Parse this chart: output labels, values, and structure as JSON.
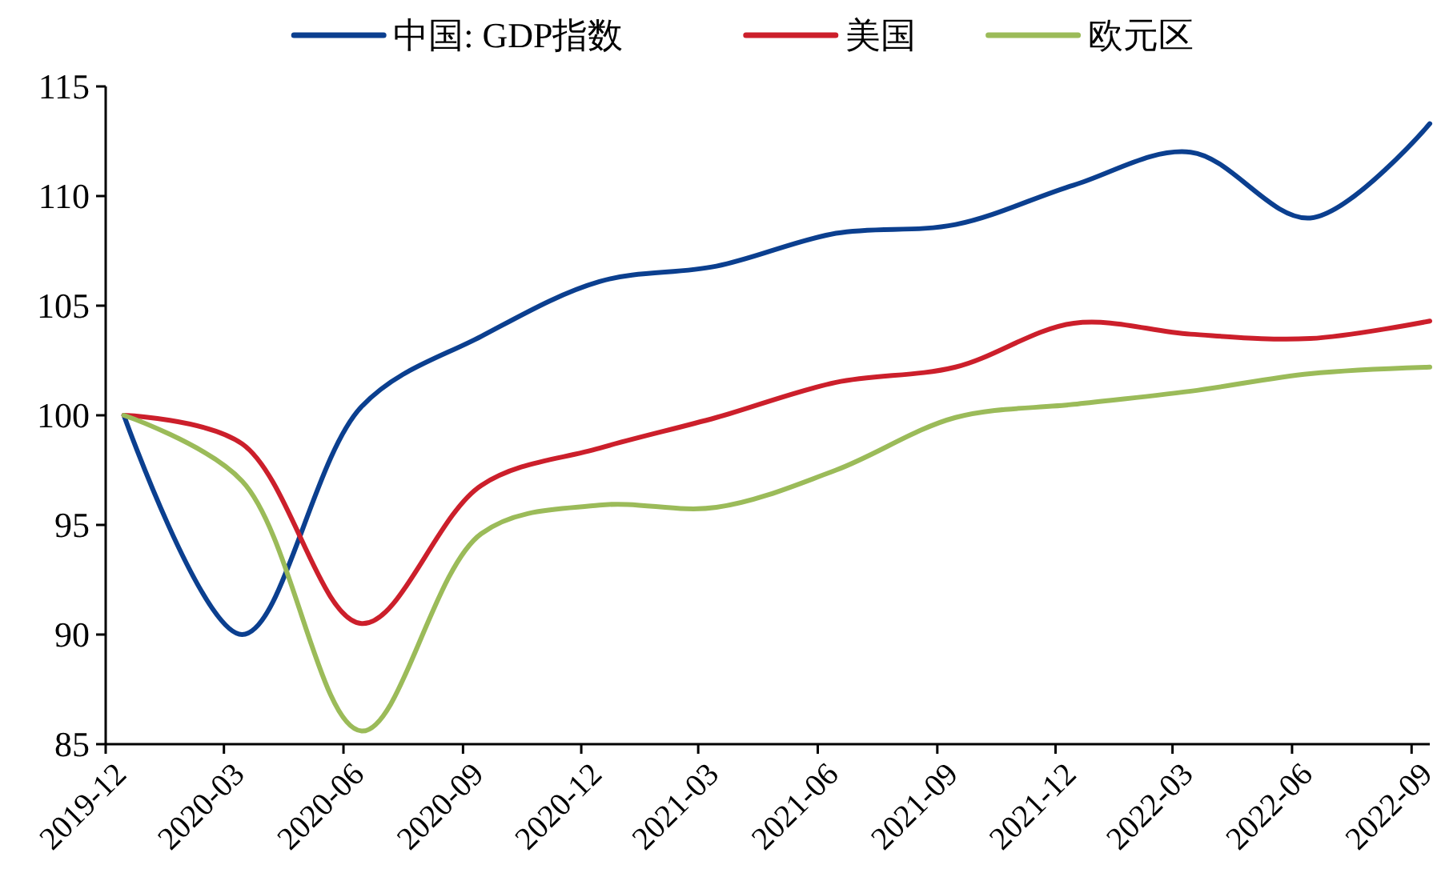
{
  "chart_data": {
    "type": "line",
    "x": [
      "2019-12-15",
      "2020-03-15",
      "2020-06-15",
      "2020-09-15",
      "2020-12-15",
      "2021-03-15",
      "2021-06-15",
      "2021-09-15",
      "2021-12-15",
      "2022-03-15",
      "2022-06-15",
      "2022-09-15"
    ],
    "series": [
      {
        "name": "中国: GDP指数",
        "color": "#0b3f8f",
        "values": [
          100,
          90.0,
          100.4,
          103.6,
          106.1,
          106.8,
          108.3,
          108.7,
          110.5,
          112.0,
          109.0,
          113.3
        ]
      },
      {
        "name": "美国",
        "color": "#cc1f2b",
        "values": [
          100,
          98.7,
          90.5,
          96.8,
          98.5,
          99.9,
          101.5,
          102.2,
          104.2,
          103.7,
          103.5,
          104.3
        ]
      },
      {
        "name": "欧元区",
        "color": "#9bbb59",
        "values": [
          100,
          97.0,
          85.6,
          94.6,
          95.9,
          95.8,
          97.5,
          99.9,
          100.5,
          101.1,
          101.9,
          102.2
        ]
      }
    ],
    "xlim": [
      "2019-12",
      "2022-09-15"
    ],
    "xticks": [
      "2019-12",
      "2020-03",
      "2020-06",
      "2020-09",
      "2020-12",
      "2021-03",
      "2021-06",
      "2021-09",
      "2021-12",
      "2022-03",
      "2022-06",
      "2022-09"
    ],
    "ylim": [
      85,
      115
    ],
    "yticks": [
      85,
      90,
      95,
      100,
      105,
      110,
      115
    ],
    "legend": "top",
    "grid": false,
    "marker": "none",
    "line_style": "solid"
  }
}
